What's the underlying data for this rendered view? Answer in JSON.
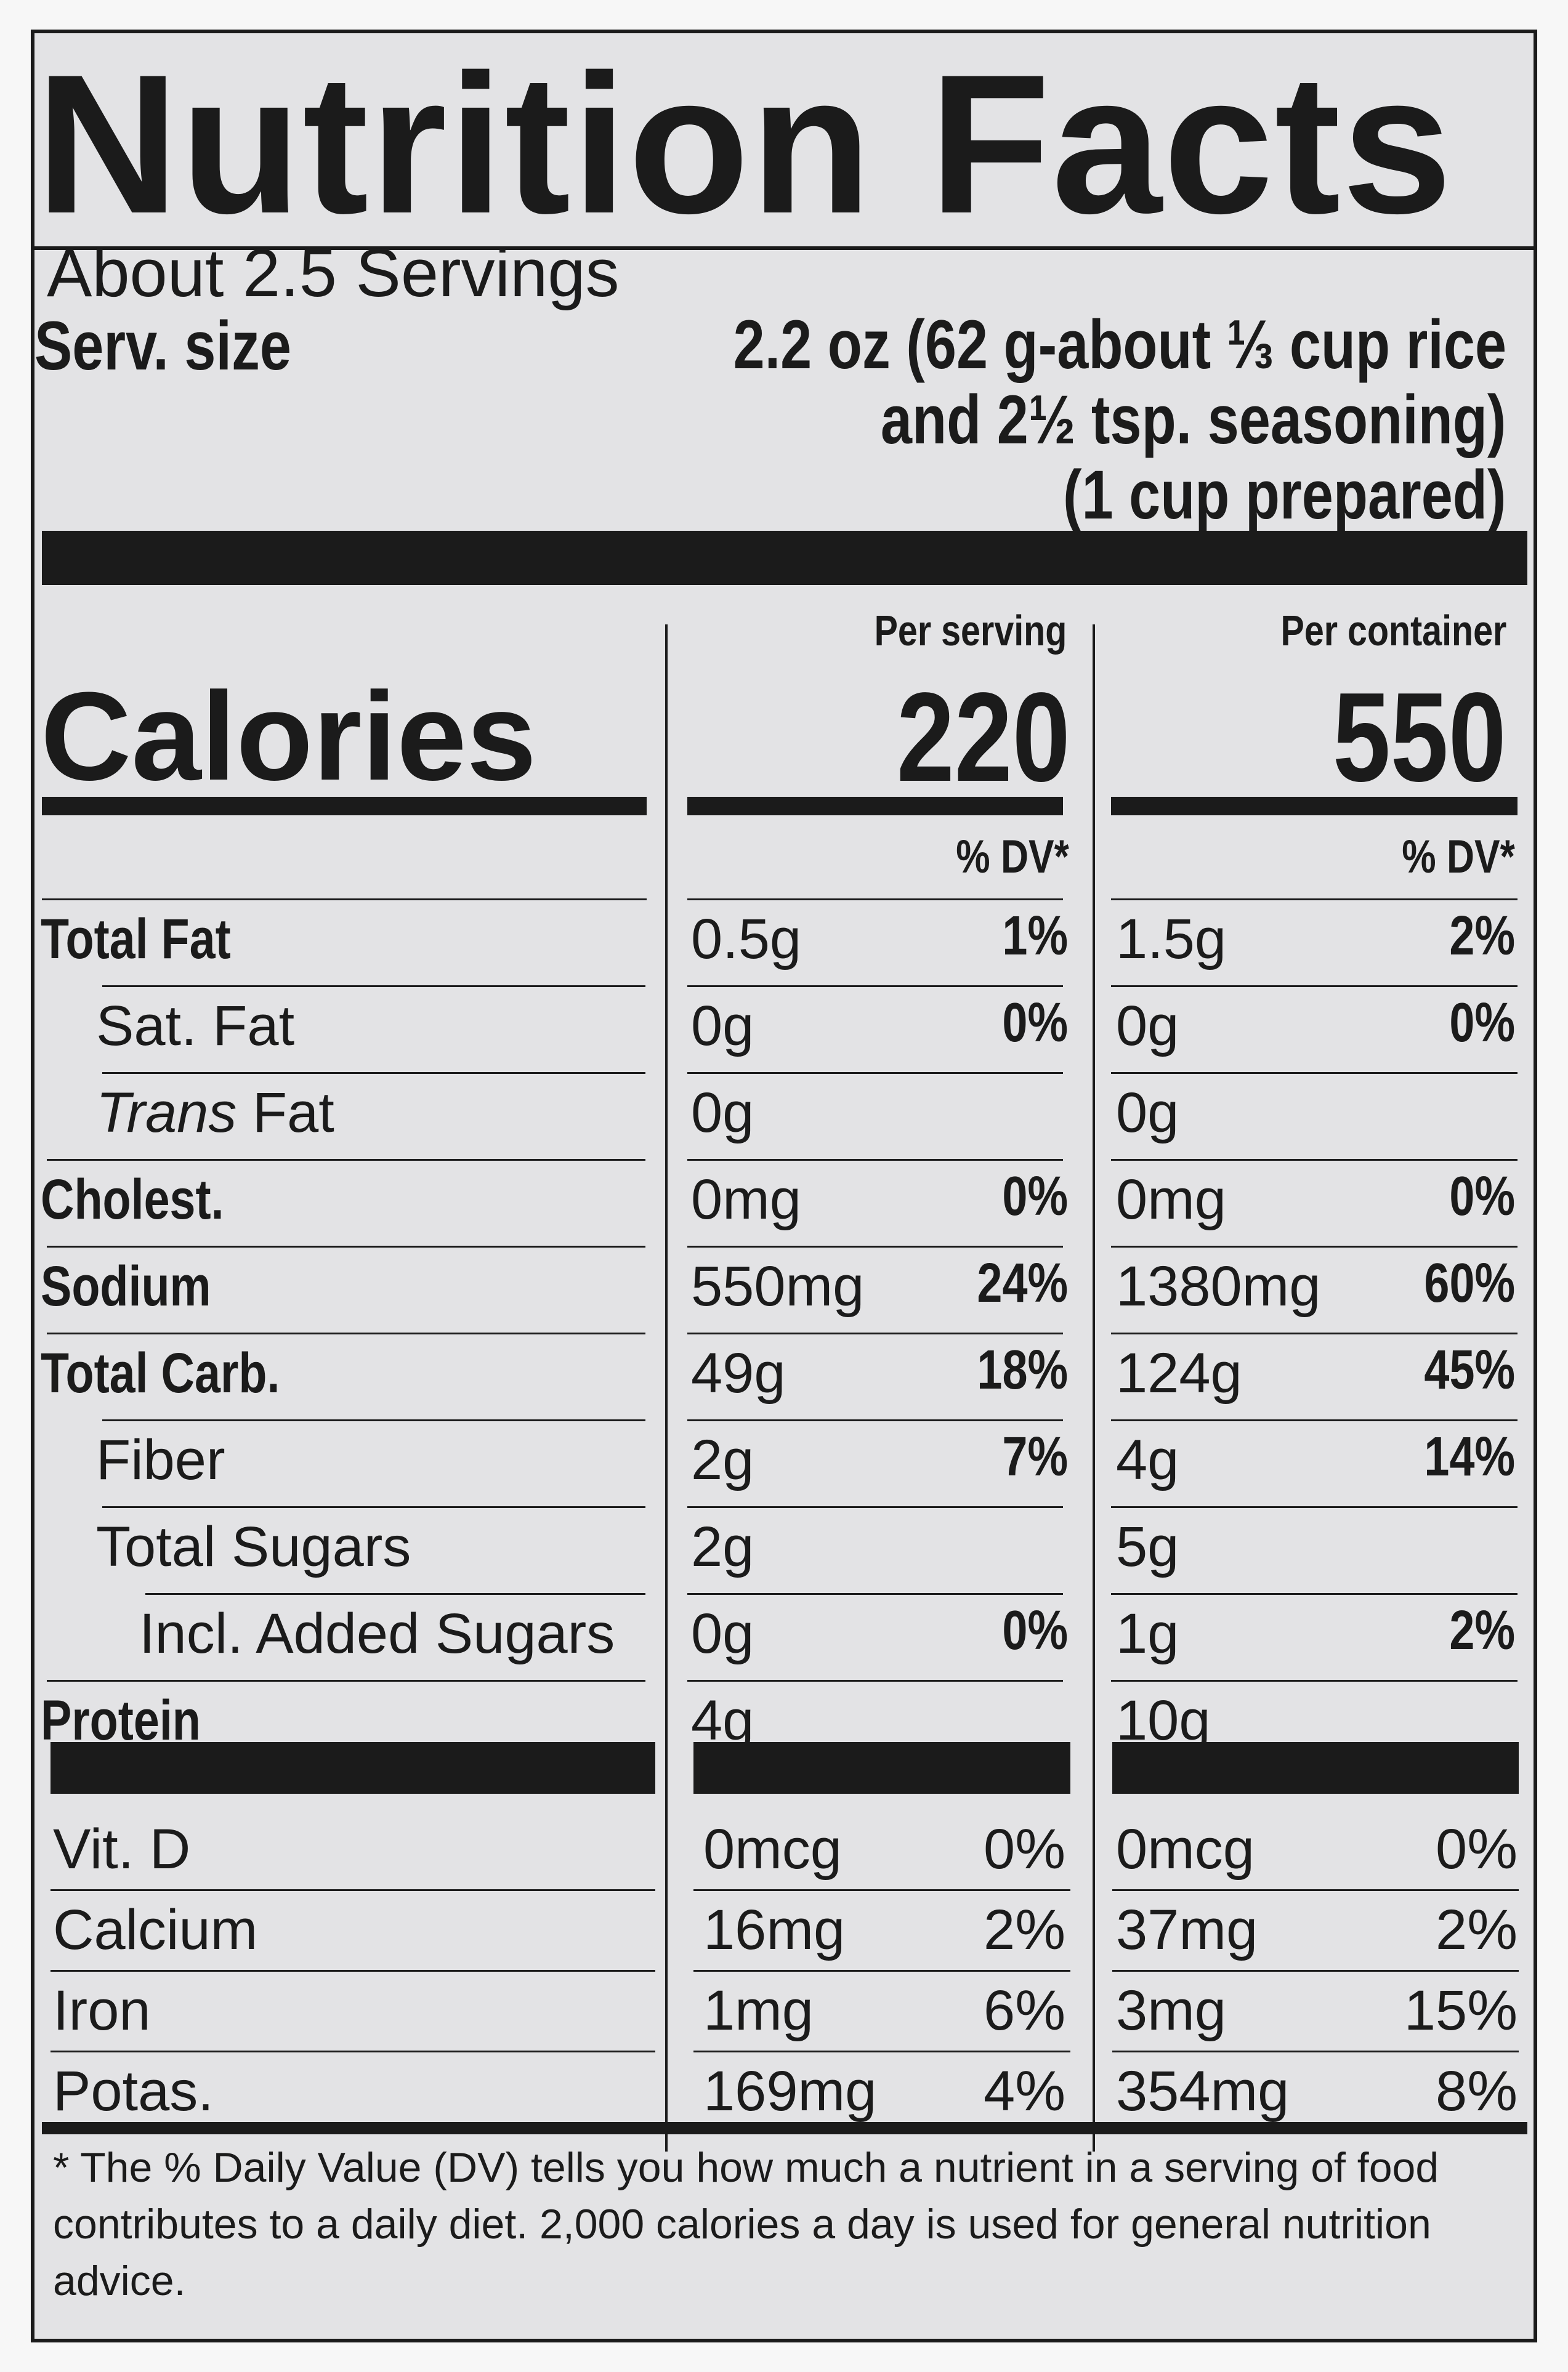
{
  "title": "Nutrition Facts",
  "servings_per_container": "About 2.5 Servings",
  "serving_size_label": "Serv. size",
  "serving_size_lines": [
    "2.2 oz (62 g-about ⅓ cup rice",
    "and 2½ tsp. seasoning)",
    "(1 cup prepared)"
  ],
  "calories_label": "Calories",
  "columns": [
    {
      "header": "Per serving",
      "calories": "220",
      "dv_header": "% DV*"
    },
    {
      "header": "Per container",
      "calories": "550",
      "dv_header": "% DV*"
    }
  ],
  "nutrients": [
    {
      "name": "Total Fat",
      "bold": true,
      "indent": 0,
      "serving": {
        "amount": "0.5g",
        "dv": "1%"
      },
      "container": {
        "amount": "1.5g",
        "dv": "2%"
      }
    },
    {
      "name": "Sat. Fat",
      "bold": false,
      "indent": 1,
      "serving": {
        "amount": "0g",
        "dv": "0%"
      },
      "container": {
        "amount": "0g",
        "dv": "0%"
      }
    },
    {
      "name_italic": "Trans",
      "name": " Fat",
      "bold": false,
      "indent": 1,
      "serving": {
        "amount": "0g",
        "dv": ""
      },
      "container": {
        "amount": "0g",
        "dv": ""
      }
    },
    {
      "name": "Cholest.",
      "bold": true,
      "indent": 0,
      "serving": {
        "amount": "0mg",
        "dv": "0%"
      },
      "container": {
        "amount": "0mg",
        "dv": "0%"
      }
    },
    {
      "name": "Sodium",
      "bold": true,
      "indent": 0,
      "serving": {
        "amount": "550mg",
        "dv": "24%"
      },
      "container": {
        "amount": "1380mg",
        "dv": "60%"
      }
    },
    {
      "name": "Total Carb.",
      "bold": true,
      "indent": 0,
      "serving": {
        "amount": "49g",
        "dv": "18%"
      },
      "container": {
        "amount": "124g",
        "dv": "45%"
      }
    },
    {
      "name": "Fiber",
      "bold": false,
      "indent": 1,
      "serving": {
        "amount": "2g",
        "dv": "7%"
      },
      "container": {
        "amount": "4g",
        "dv": "14%"
      }
    },
    {
      "name": "Total Sugars",
      "bold": false,
      "indent": 1,
      "serving": {
        "amount": "2g",
        "dv": ""
      },
      "container": {
        "amount": "5g",
        "dv": ""
      }
    },
    {
      "name": "Incl. Added Sugars",
      "bold": false,
      "indent": 2,
      "serving": {
        "amount": "0g",
        "dv": "0%"
      },
      "container": {
        "amount": "1g",
        "dv": "2%"
      }
    },
    {
      "name": "Protein",
      "bold": true,
      "indent": 0,
      "serving": {
        "amount": "4g",
        "dv": ""
      },
      "container": {
        "amount": "10g",
        "dv": ""
      }
    }
  ],
  "vitamins": [
    {
      "name": "Vit. D",
      "serving": {
        "amount": "0mcg",
        "dv": "0%"
      },
      "container": {
        "amount": "0mcg",
        "dv": "0%"
      }
    },
    {
      "name": "Calcium",
      "serving": {
        "amount": "16mg",
        "dv": "2%"
      },
      "container": {
        "amount": "37mg",
        "dv": "2%"
      }
    },
    {
      "name": "Iron",
      "serving": {
        "amount": "1mg",
        "dv": "6%"
      },
      "container": {
        "amount": "3mg",
        "dv": "15%"
      }
    },
    {
      "name": "Potas.",
      "serving": {
        "amount": "169mg",
        "dv": "4%"
      },
      "container": {
        "amount": "354mg",
        "dv": "8%"
      }
    }
  ],
  "footnote": "* The % Daily Value (DV) tells you how much a nutrient in a serving of food contributes to a daily diet. 2,000 calories a day is used for general nutrition advice."
}
